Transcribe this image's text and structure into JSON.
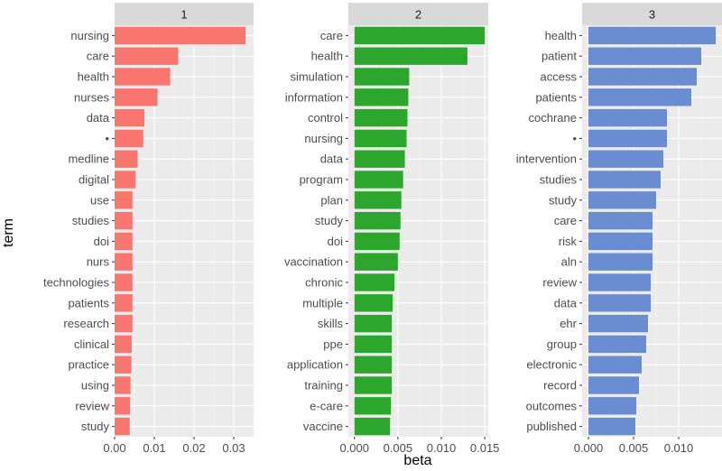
{
  "chart_data": {
    "type": "bar",
    "orientation": "horizontal",
    "xlabel": "beta",
    "ylabel": "term",
    "grid": true,
    "panels": [
      {
        "name": "1",
        "color": "#F8766D",
        "xlim": [
          0,
          0.035
        ],
        "ticks": [
          0.0,
          0.01,
          0.02,
          0.03
        ],
        "tick_labels": [
          "0.00",
          "0.01",
          "0.02",
          "0.03"
        ],
        "terms": [
          "nursing",
          "care",
          "health",
          "nurses",
          "data",
          "•",
          "medline",
          "digital",
          "use",
          "studies",
          "doi",
          "nurs",
          "technologies",
          "patients",
          "research",
          "clinical",
          "practice",
          "using",
          "review",
          "study"
        ],
        "values": [
          0.033,
          0.016,
          0.014,
          0.0108,
          0.0075,
          0.0072,
          0.0058,
          0.0053,
          0.0045,
          0.0045,
          0.0045,
          0.0045,
          0.0045,
          0.0045,
          0.0045,
          0.0043,
          0.0042,
          0.004,
          0.0039,
          0.0038
        ]
      },
      {
        "name": "2",
        "color": "#2CA62C",
        "xlim": [
          -0.0007,
          0.0154
        ],
        "ticks": [
          0.0,
          0.005,
          0.01,
          0.015
        ],
        "tick_labels": [
          "0.000",
          "0.005",
          "0.010",
          "0.015"
        ],
        "terms": [
          "care",
          "health",
          "simulation",
          "information",
          "control",
          "nursing",
          "data",
          "program",
          "plan",
          "study",
          "doi",
          "vaccination",
          "chronic",
          "multiple",
          "skills",
          "ppe",
          "application",
          "training",
          "e-care",
          "vaccine"
        ],
        "values": [
          0.015,
          0.013,
          0.0063,
          0.0062,
          0.0061,
          0.006,
          0.0058,
          0.0056,
          0.0054,
          0.0053,
          0.0052,
          0.005,
          0.0046,
          0.0044,
          0.0043,
          0.0043,
          0.0043,
          0.0043,
          0.0042,
          0.0041
        ]
      },
      {
        "name": "3",
        "color": "#6A8DD2",
        "xlim": [
          -0.0007,
          0.0148
        ],
        "ticks": [
          0.0,
          0.005,
          0.01
        ],
        "tick_labels": [
          "0.000",
          "0.005",
          "0.010"
        ],
        "terms": [
          "health",
          "patient",
          "access",
          "patients",
          "cochrane",
          "•",
          "intervention",
          "studies",
          "study",
          "care",
          "risk",
          "aln",
          "review",
          "data",
          "ehr",
          "group",
          "electronic",
          "record",
          "outcomes",
          "published"
        ],
        "values": [
          0.0141,
          0.0125,
          0.012,
          0.0114,
          0.0087,
          0.0087,
          0.0083,
          0.008,
          0.0075,
          0.0071,
          0.0071,
          0.0071,
          0.0069,
          0.0069,
          0.0066,
          0.0064,
          0.0059,
          0.0056,
          0.0053,
          0.0052
        ]
      }
    ]
  }
}
